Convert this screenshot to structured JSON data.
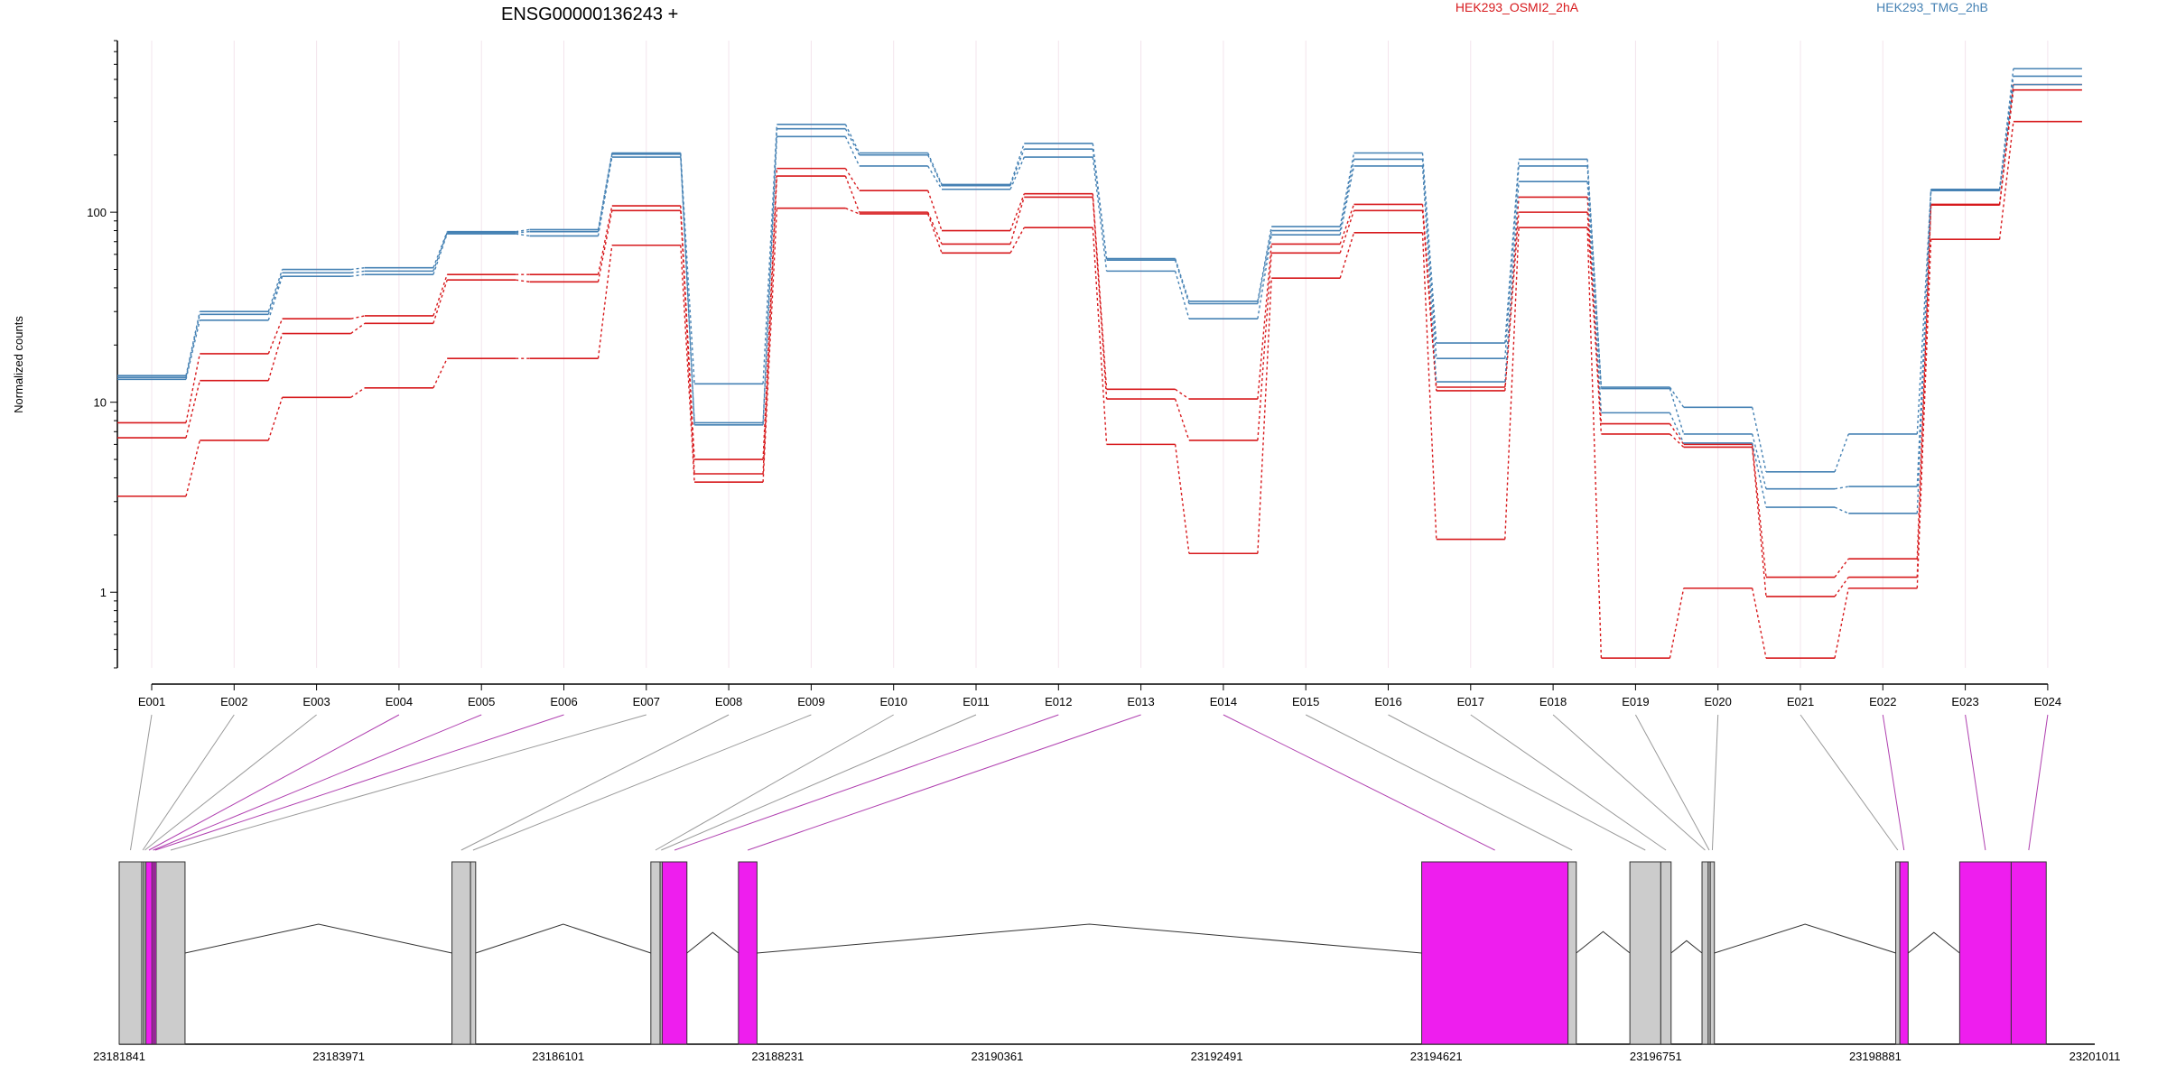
{
  "chart_data": {
    "type": "line",
    "title": "ENSG00000136243 +",
    "xlabel": "",
    "ylabel": "Normalized counts",
    "y_scale": "log",
    "ylim": [
      0.4,
      800
    ],
    "y_ticks": [
      1,
      10,
      100
    ],
    "y_tick_labels": [
      "1",
      "10",
      "100"
    ],
    "grid": "light vertical gridlines at each exon",
    "legend_placement": "top",
    "categories": [
      "E001",
      "E002",
      "E003",
      "E004",
      "E005",
      "E006",
      "E007",
      "E008",
      "E009",
      "E010",
      "E011",
      "E012",
      "E013",
      "E014",
      "E015",
      "E016",
      "E017",
      "E018",
      "E019",
      "E020",
      "E021",
      "E022",
      "E023",
      "E024"
    ],
    "groups": [
      {
        "name": "HEK293_OSMI2_2hA",
        "color": "#d7191c"
      },
      {
        "name": "HEK293_TMG_2hB",
        "color": "#4682b4"
      }
    ],
    "series": [
      {
        "group": "HEK293_OSMI2_2hA",
        "values": [
          7.8,
          18,
          27.5,
          28.5,
          47,
          47,
          108,
          5,
          170,
          130,
          80,
          125,
          11.7,
          10.4,
          68,
          110,
          12,
          120,
          7.7,
          6,
          1.2,
          1.5,
          110,
          470
        ]
      },
      {
        "group": "HEK293_OSMI2_2hA",
        "values": [
          6.5,
          13,
          23,
          26,
          44,
          43,
          102,
          4.2,
          155,
          100,
          68,
          120,
          10.4,
          6.3,
          61,
          102,
          11.5,
          100,
          6.8,
          5.8,
          0.95,
          1.2,
          109,
          440
        ]
      },
      {
        "group": "HEK293_OSMI2_2hA",
        "values": [
          3.2,
          6.3,
          10.6,
          11.9,
          17,
          17,
          67,
          3.8,
          105,
          98,
          61,
          83,
          6,
          1.6,
          45,
          78,
          1.9,
          83,
          0.45,
          1.05,
          0.45,
          1.05,
          72,
          300
        ]
      },
      {
        "group": "HEK293_TMG_2hB",
        "values": [
          13.8,
          30,
          50,
          51,
          79,
          81,
          205,
          12.5,
          290,
          205,
          140,
          230,
          57,
          34,
          84,
          205,
          20.5,
          190,
          12,
          9.4,
          4.3,
          6.8,
          132,
          570
        ]
      },
      {
        "group": "HEK293_TMG_2hB",
        "values": [
          13.5,
          29,
          48,
          49,
          78,
          79,
          202,
          7.8,
          275,
          200,
          138,
          215,
          56,
          33,
          80,
          190,
          17,
          175,
          11.8,
          6.8,
          3.5,
          3.6,
          131,
          520
        ]
      },
      {
        "group": "HEK293_TMG_2hB",
        "values": [
          13.2,
          27,
          46,
          47,
          77,
          75,
          195,
          7.6,
          250,
          175,
          132,
          195,
          49,
          27.5,
          76,
          175,
          12.8,
          145,
          8.8,
          6.1,
          2.8,
          2.6,
          130,
          470
        ]
      }
    ],
    "gene_model": {
      "coordinate_labels": [
        "23181841",
        "23183971",
        "23186101",
        "23188231",
        "23190361",
        "23192491",
        "23194621",
        "23196751",
        "23198881",
        "23201011"
      ],
      "coordinate_range": [
        23181841,
        23201011
      ],
      "exons": [
        {
          "id": "E001",
          "start": 23181841,
          "end": 23182060,
          "highlight": false
        },
        {
          "id": "E002",
          "start": 23182060,
          "end": 23182080,
          "highlight": false
        },
        {
          "id": "E003",
          "start": 23182080,
          "end": 23182100,
          "highlight": false
        },
        {
          "id": "E004",
          "start": 23182100,
          "end": 23182160,
          "highlight": true
        },
        {
          "id": "E005",
          "start": 23182160,
          "end": 23182180,
          "highlight": true
        },
        {
          "id": "E006",
          "start": 23182180,
          "end": 23182200,
          "highlight": true
        },
        {
          "id": "E007",
          "start": 23182200,
          "end": 23182480,
          "highlight": false
        },
        {
          "id": "E008",
          "start": 23185070,
          "end": 23185250,
          "highlight": false
        },
        {
          "id": "E009",
          "start": 23185250,
          "end": 23185300,
          "highlight": false
        },
        {
          "id": "E010",
          "start": 23187000,
          "end": 23187090,
          "highlight": false
        },
        {
          "id": "E011",
          "start": 23187090,
          "end": 23187110,
          "highlight": false
        },
        {
          "id": "E012",
          "start": 23187110,
          "end": 23187350,
          "highlight": true
        },
        {
          "id": "E013",
          "start": 23187850,
          "end": 23188030,
          "highlight": true
        },
        {
          "id": "E014",
          "start": 23194480,
          "end": 23195900,
          "highlight": true
        },
        {
          "id": "E015",
          "start": 23195900,
          "end": 23195980,
          "highlight": false
        },
        {
          "id": "E016",
          "start": 23196500,
          "end": 23196800,
          "highlight": false
        },
        {
          "id": "E017",
          "start": 23196800,
          "end": 23196900,
          "highlight": false
        },
        {
          "id": "E018",
          "start": 23197200,
          "end": 23197260,
          "highlight": false
        },
        {
          "id": "E019",
          "start": 23197260,
          "end": 23197280,
          "highlight": false
        },
        {
          "id": "E020",
          "start": 23197280,
          "end": 23197320,
          "highlight": false
        },
        {
          "id": "E021",
          "start": 23199080,
          "end": 23199120,
          "highlight": false
        },
        {
          "id": "E022",
          "start": 23199120,
          "end": 23199200,
          "highlight": true
        },
        {
          "id": "E023",
          "start": 23199700,
          "end": 23200200,
          "highlight": true
        },
        {
          "id": "E024",
          "start": 23200200,
          "end": 23200540,
          "highlight": true
        }
      ],
      "highlight_color": "#ee1eee",
      "exon_color": "#cccccc"
    }
  }
}
